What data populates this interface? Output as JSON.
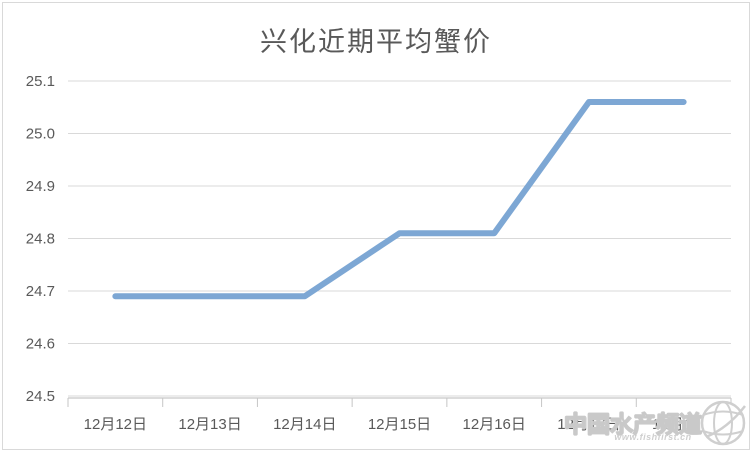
{
  "title": "兴化近期平均蟹价",
  "watermark": {
    "text": "中国水产频道",
    "url": "www.fishfirst.cn"
  },
  "colors": {
    "line": "#7DA7D4",
    "grid": "#D9D9D9",
    "axis": "#C6C6C6",
    "text": "#595959",
    "frame": "#D9D9D9",
    "background": "#FFFFFF"
  },
  "chart_data": {
    "type": "line",
    "title": "兴化近期平均蟹价",
    "categories": [
      "12月12日",
      "12月13日",
      "12月14日",
      "12月15日",
      "12月16日",
      "12月17日",
      "12月18日"
    ],
    "values": [
      24.69,
      24.69,
      24.69,
      24.81,
      24.81,
      25.06,
      25.06
    ],
    "xlabel": "",
    "ylabel": "",
    "ylim": [
      24.5,
      25.1
    ],
    "ytick_labels": [
      "25.1",
      "25.0",
      "24.9",
      "24.8",
      "24.7",
      "24.6",
      "24.5"
    ],
    "grid": true,
    "legend": false,
    "line_color": "#7DA7D4"
  }
}
